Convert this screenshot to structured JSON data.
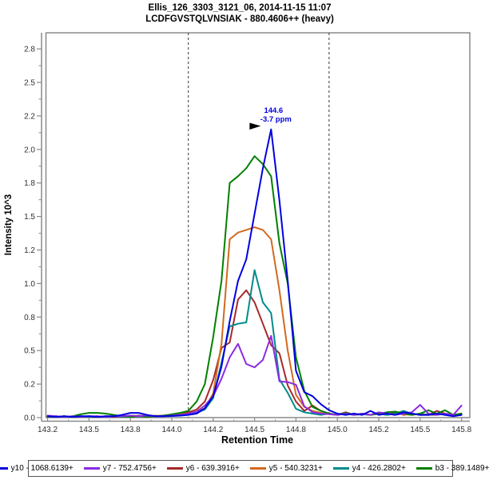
{
  "header": {
    "title_line1": "Ellis_126_3303_3121_06, 2014-11-15 11:07",
    "title_line2": "LCDFGVSTQLVNSIAK - 880.4606++ (heavy)"
  },
  "chart_data": {
    "type": "line",
    "title": "Ellis_126_3303_3121_06, 2014-11-15 11:07",
    "subtitle": "LCDFGVSTQLVNSIAK - 880.4606++ (heavy)",
    "xlabel": "Retention Time",
    "ylabel": "Intensity 10^3",
    "xlim": [
      143.24,
      145.8
    ],
    "ylim": [
      0,
      2.87
    ],
    "grid": false,
    "legend_position": "bottom",
    "x_ticks": {
      "values": [
        143.25,
        143.5,
        143.75,
        144.0,
        144.25,
        144.5,
        144.75,
        145.0,
        145.25,
        145.5,
        145.75
      ],
      "labels": [
        "143.2",
        "143.5",
        "143.8",
        "144.0",
        "144.2",
        "144.5",
        "144.8",
        "145.0",
        "145.2",
        "145.5",
        "145.8"
      ]
    },
    "y_ticks": {
      "values": [
        0,
        0.25,
        0.5,
        0.75,
        1.0,
        1.25,
        1.5,
        1.75,
        2.0,
        2.25,
        2.5,
        2.75
      ],
      "labels": [
        "0.0",
        "0.2",
        "0.5",
        "0.8",
        "1.0",
        "1.2",
        "1.5",
        "1.8",
        "2.0",
        "2.2",
        "2.5",
        "2.8"
      ]
    },
    "x_start": 143.25,
    "x_step": 0.05,
    "integration_boundaries": [
      144.1,
      144.95
    ],
    "annotation": {
      "line1": "144.6",
      "line2": "-3.7 ppm",
      "x": 144.6,
      "y": 2.15,
      "color": "#0000E0"
    },
    "series": [
      {
        "name": "y10 - 1068.6139+",
        "color": "#0000E0",
        "values": [
          0.01,
          0.005,
          0.01,
          0.005,
          0.01,
          0.01,
          0.005,
          0.01,
          0.01,
          0.02,
          0.035,
          0.035,
          0.02,
          0.01,
          0.01,
          0.012,
          0.015,
          0.02,
          0.03,
          0.07,
          0.16,
          0.38,
          0.72,
          1.02,
          1.18,
          1.52,
          1.86,
          2.15,
          1.62,
          1.02,
          0.35,
          0.19,
          0.16,
          0.1,
          0.055,
          0.03,
          0.02,
          0.03,
          0.02,
          0.05,
          0.02,
          0.03,
          0.02,
          0.04,
          0.03,
          0.02,
          0.02,
          0.03,
          0.02,
          0.01,
          0.02
        ]
      },
      {
        "name": "y7 - 752.4756+",
        "color": "#8A2BE2",
        "values": [
          0.015,
          0.01,
          0.005,
          0.01,
          0.005,
          0.01,
          0.01,
          0.005,
          0.01,
          0.01,
          0.015,
          0.01,
          0.015,
          0.01,
          0.01,
          0.015,
          0.02,
          0.03,
          0.045,
          0.09,
          0.16,
          0.29,
          0.45,
          0.55,
          0.4,
          0.375,
          0.43,
          0.61,
          0.27,
          0.265,
          0.245,
          0.085,
          0.04,
          0.03,
          0.025,
          0.02,
          0.03,
          0.02,
          0.03,
          0.02,
          0.04,
          0.03,
          0.02,
          0.03,
          0.04,
          0.095,
          0.03,
          0.02,
          0.03,
          0.02,
          0.09
        ]
      },
      {
        "name": "y6 - 639.3916+",
        "color": "#A52A2A",
        "values": [
          0.01,
          0.005,
          0.01,
          0.005,
          0.005,
          0.01,
          0.005,
          0.01,
          0.005,
          0.01,
          0.01,
          0.015,
          0.01,
          0.01,
          0.015,
          0.02,
          0.03,
          0.04,
          0.06,
          0.12,
          0.28,
          0.52,
          0.56,
          0.88,
          0.95,
          0.86,
          0.7,
          0.54,
          0.48,
          0.24,
          0.12,
          0.05,
          0.09,
          0.05,
          0.03,
          0.02,
          0.04,
          0.02,
          0.03,
          0.02,
          0.03,
          0.02,
          0.04,
          0.02,
          0.03,
          0.02,
          0.02,
          0.05,
          0.03,
          0.02,
          0.03
        ]
      },
      {
        "name": "y5 - 540.3231+",
        "color": "#D2691E",
        "values": [
          0.01,
          0.005,
          0.01,
          0.005,
          0.01,
          0.005,
          0.01,
          0.005,
          0.01,
          0.01,
          0.015,
          0.01,
          0.01,
          0.015,
          0.01,
          0.02,
          0.025,
          0.03,
          0.04,
          0.07,
          0.18,
          0.55,
          1.33,
          1.38,
          1.4,
          1.42,
          1.4,
          1.33,
          0.95,
          0.5,
          0.17,
          0.08,
          0.05,
          0.035,
          0.025,
          0.02,
          0.03,
          0.02,
          0.025,
          0.02,
          0.03,
          0.02,
          0.03,
          0.025,
          0.02,
          0.03,
          0.02,
          0.02,
          0.03,
          0.02,
          0.025
        ]
      },
      {
        "name": "y4 - 426.2802+",
        "color": "#008B8B",
        "values": [
          0.005,
          0.01,
          0.005,
          0.005,
          0.01,
          0.005,
          0.01,
          0.005,
          0.01,
          0.005,
          0.01,
          0.01,
          0.015,
          0.01,
          0.01,
          0.015,
          0.02,
          0.025,
          0.035,
          0.06,
          0.145,
          0.41,
          0.68,
          0.7,
          0.71,
          1.1,
          0.86,
          0.78,
          0.285,
          0.185,
          0.066,
          0.04,
          0.03,
          0.02,
          0.03,
          0.02,
          0.03,
          0.02,
          0.025,
          0.02,
          0.03,
          0.02,
          0.03,
          0.05,
          0.03,
          0.02,
          0.025,
          0.02,
          0.03,
          0.02,
          0.02
        ]
      },
      {
        "name": "b3 - 389.1489+",
        "color": "#008000",
        "values": [
          0.005,
          0.01,
          0.005,
          0.01,
          0.025,
          0.035,
          0.035,
          0.03,
          0.02,
          0.01,
          0.005,
          0.01,
          0.005,
          0.01,
          0.015,
          0.025,
          0.035,
          0.05,
          0.12,
          0.25,
          0.6,
          1.02,
          1.75,
          1.8,
          1.86,
          1.95,
          1.89,
          1.8,
          1.3,
          1.0,
          0.45,
          0.2,
          0.08,
          0.05,
          0.03,
          0.02,
          0.035,
          0.02,
          0.03,
          0.02,
          0.03,
          0.04,
          0.045,
          0.03,
          0.02,
          0.03,
          0.055,
          0.03,
          0.055,
          0.02,
          0.03
        ]
      }
    ],
    "draw_order": [
      2,
      3,
      4,
      5,
      1,
      0
    ],
    "axis_color": "#8a8a8a",
    "tick_label_color": "#303030",
    "boundary_color": "#333333"
  }
}
